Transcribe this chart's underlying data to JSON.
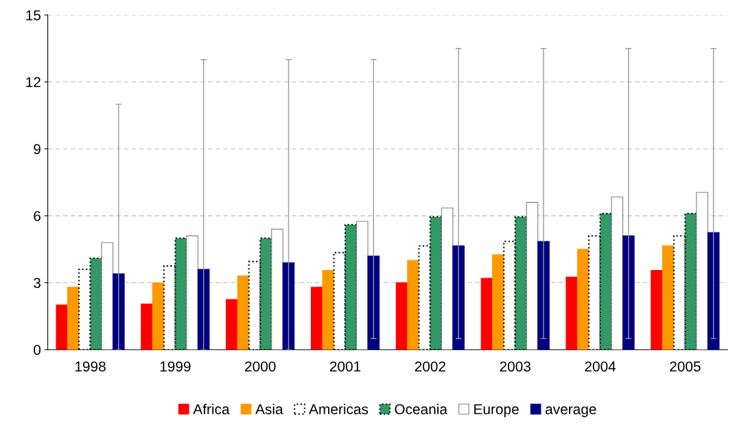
{
  "chart_data": {
    "type": "bar",
    "categories": [
      "1998",
      "1999",
      "2000",
      "2001",
      "2002",
      "2003",
      "2004",
      "2005"
    ],
    "series": [
      {
        "name": "Africa",
        "color": "#ff0000",
        "values": [
          2.0,
          2.05,
          2.25,
          2.8,
          3.0,
          3.2,
          3.25,
          3.55
        ]
      },
      {
        "name": "Asia",
        "color": "#ff9900",
        "values": [
          2.8,
          3.0,
          3.3,
          3.55,
          4.0,
          4.25,
          4.5,
          4.65
        ]
      },
      {
        "name": "Americas",
        "color": "#ffffff",
        "line_style": "dotted",
        "values": [
          3.6,
          3.75,
          3.95,
          4.35,
          4.65,
          4.85,
          5.1,
          5.1
        ]
      },
      {
        "name": "Oceania",
        "color": "#339966",
        "line_style": "dotted",
        "values": [
          4.1,
          5.0,
          5.0,
          5.6,
          5.95,
          5.95,
          6.1,
          6.1
        ]
      },
      {
        "name": "Europe",
        "color": "#ffffff",
        "values": [
          4.8,
          5.1,
          5.4,
          5.75,
          6.35,
          6.6,
          6.85,
          7.05
        ]
      },
      {
        "name": "average",
        "color": "#000080",
        "values": [
          3.4,
          3.6,
          3.9,
          4.2,
          4.65,
          4.85,
          5.1,
          5.25
        ],
        "errors": [
          [
            0,
            11
          ],
          [
            0,
            13
          ],
          [
            0,
            13
          ],
          [
            0.5,
            13
          ],
          [
            0.5,
            13.5
          ],
          [
            0.5,
            13.5
          ],
          [
            0.5,
            13.5
          ],
          [
            0.5,
            13.5
          ]
        ]
      }
    ],
    "ylim": [
      0,
      15
    ],
    "yticks": [
      0,
      3,
      6,
      9,
      12,
      15
    ],
    "grid": "y",
    "legend": "bottom"
  }
}
